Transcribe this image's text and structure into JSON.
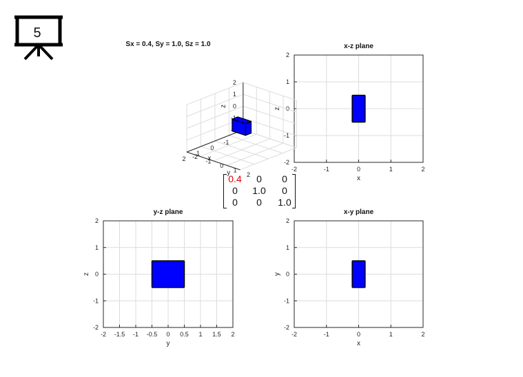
{
  "slide": {
    "number": "5"
  },
  "matrix": {
    "rows": [
      [
        "0.4",
        "0",
        "0"
      ],
      [
        "0",
        "1.0",
        "0"
      ],
      [
        "0",
        "0",
        "1.0"
      ]
    ]
  },
  "colors": {
    "shape_fill": "#0000ff",
    "shape_edge": "#000000",
    "highlight": "#e00000",
    "grid": "#dcdcdc"
  },
  "chart_data": [
    {
      "type": "3d-box",
      "title": "Sx = 0.4, Sy = 1.0, Sz = 1.0",
      "xlabel": "x",
      "ylabel": "y",
      "zlabel": "z",
      "xlim": [
        -2,
        2
      ],
      "ylim": [
        -2,
        2
      ],
      "zlim": [
        -2,
        2
      ],
      "xticks": [
        "-1",
        "0",
        "1",
        "2"
      ],
      "yticks": [
        "-2",
        "-1",
        "0",
        "1",
        "2"
      ],
      "zticks": [
        "-2",
        "-1",
        "0",
        "1",
        "2"
      ],
      "box": {
        "x": [
          -0.2,
          0.2
        ],
        "y": [
          -0.5,
          0.5
        ],
        "z": [
          -0.5,
          0.5
        ]
      }
    },
    {
      "type": "rect-projection",
      "title": "x-z plane",
      "xlabel": "x",
      "ylabel": "z",
      "xlim": [
        -2,
        2
      ],
      "ylim": [
        -2,
        2
      ],
      "xticks": [
        "-2",
        "-1",
        "0",
        "1",
        "2"
      ],
      "yticks": [
        "-2",
        "-1",
        "0",
        "1",
        "2"
      ],
      "rect": {
        "x": [
          -0.2,
          0.2
        ],
        "y": [
          -0.5,
          0.5
        ]
      }
    },
    {
      "type": "rect-projection",
      "title": "y-z plane",
      "xlabel": "y",
      "ylabel": "z",
      "xlim": [
        -2,
        2
      ],
      "ylim": [
        -2,
        2
      ],
      "xticks": [
        "-2",
        "-1.5",
        "-1",
        "-0.5",
        "0",
        "0.5",
        "1",
        "1.5",
        "2"
      ],
      "yticks": [
        "-2",
        "-1",
        "0",
        "1",
        "2"
      ],
      "rect": {
        "x": [
          -0.5,
          0.5
        ],
        "y": [
          -0.5,
          0.5
        ]
      }
    },
    {
      "type": "rect-projection",
      "title": "x-y plane",
      "xlabel": "x",
      "ylabel": "y",
      "xlim": [
        -2,
        2
      ],
      "ylim": [
        -2,
        2
      ],
      "xticks": [
        "-2",
        "-1",
        "0",
        "1",
        "2"
      ],
      "yticks": [
        "-2",
        "-1",
        "0",
        "1",
        "2"
      ],
      "rect": {
        "x": [
          -0.2,
          0.2
        ],
        "y": [
          -0.5,
          0.5
        ]
      }
    }
  ]
}
